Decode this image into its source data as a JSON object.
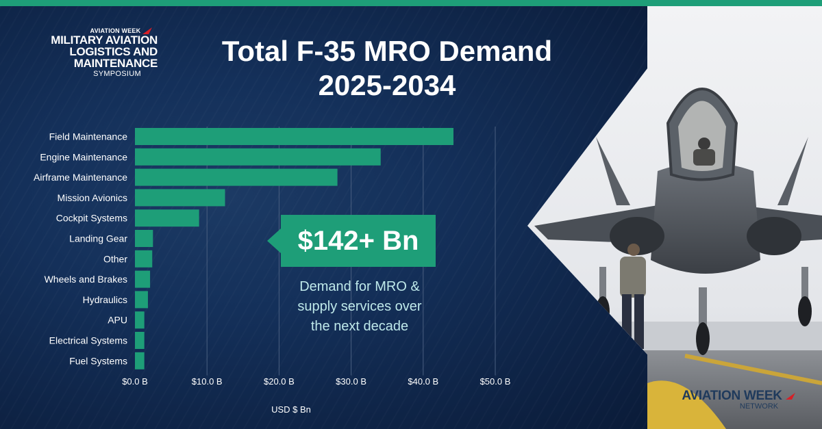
{
  "header": {
    "symposium_brand": "AVIATION WEEK",
    "symposium_lines": [
      "MILITARY AVIATION",
      "LOGISTICS AND",
      "MAINTENANCE"
    ],
    "symposium_sub": "SYMPOSIUM",
    "title_line1": "Total F-35 MRO Demand",
    "title_line2": "2025-2034"
  },
  "callout": {
    "value": "$142+ Bn",
    "description_lines": [
      "Demand for MRO &",
      "supply services over",
      "the next decade"
    ]
  },
  "footer_logo": {
    "main": "AVIATION WEEK",
    "sub": "NETWORK"
  },
  "colors": {
    "bar": "#1e9e78",
    "accent": "#1e9e78",
    "background": "#0f2240",
    "grid": "#4a5f80"
  },
  "chart_data": {
    "type": "bar",
    "orientation": "horizontal",
    "title": "Total F-35 MRO Demand 2025-2034",
    "xlabel": "USD $ Bn",
    "ylabel": "",
    "xlim": [
      0,
      50
    ],
    "grid": true,
    "categories": [
      "Field Maintenance",
      "Engine Maintenance",
      "Airframe Maintenance",
      "Mission Avionics",
      "Cockpit Systems",
      "Landing Gear",
      "Other",
      "Wheels and Brakes",
      "Hydraulics",
      "APU",
      "Electrical Systems",
      "Fuel Systems"
    ],
    "values": [
      44.2,
      34.1,
      28.1,
      12.5,
      8.9,
      2.5,
      2.4,
      2.1,
      1.8,
      1.3,
      1.3,
      1.3
    ],
    "ticks": [
      0,
      10,
      20,
      30,
      40,
      50
    ],
    "tick_labels": [
      "$0.0 B",
      "$10.0 B",
      "$20.0 B",
      "$30.0 B",
      "$40.0 B",
      "$50.0 B"
    ]
  }
}
